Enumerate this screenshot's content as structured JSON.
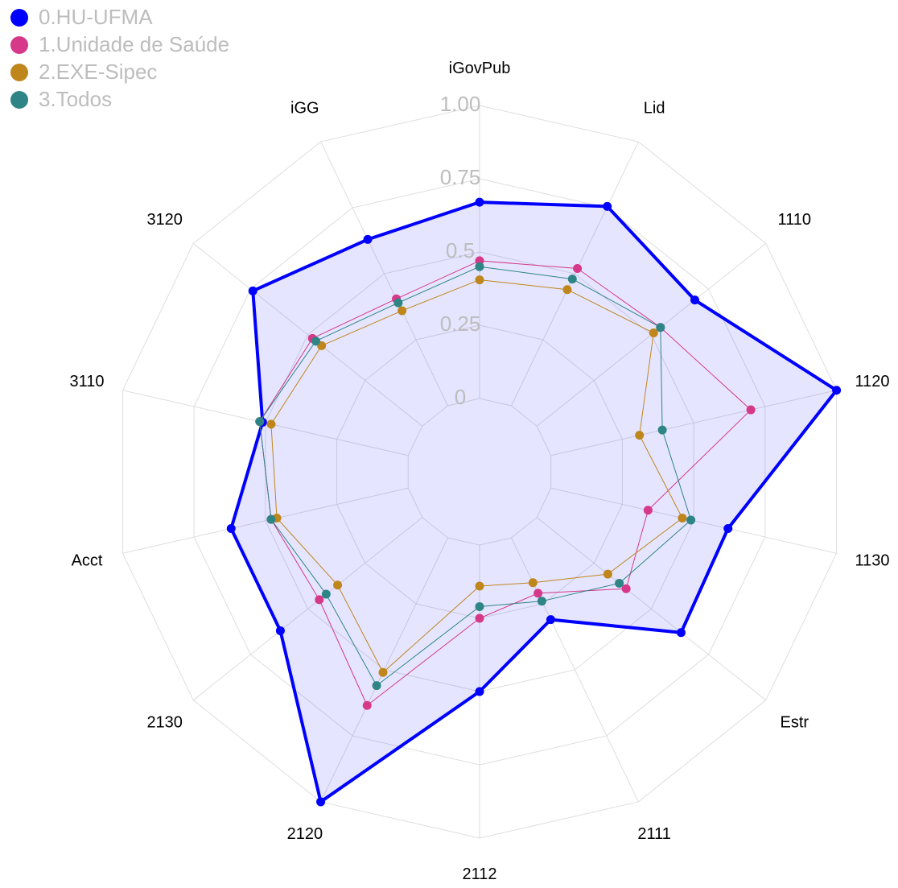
{
  "chart_data": {
    "type": "radar",
    "categories": [
      "iGovPub",
      "Lid",
      "1110",
      "1120",
      "1130",
      "Estr",
      "2111",
      "2112",
      "2120",
      "2130",
      "Acct",
      "3110",
      "3120",
      "iGG"
    ],
    "ylim": [
      -0.25,
      1
    ],
    "yticks": [
      0,
      0.25,
      0.5,
      {
        "value": 0.75,
        "label": "0.75"
      },
      {
        "value": 1,
        "label": "1.00"
      }
    ],
    "grid": true,
    "legend": "top-left",
    "series": [
      {
        "name": "0.HU-UFMA",
        "color": "#0000ff",
        "line_width": 4,
        "fill": true,
        "values": [
          0.67,
          0.755,
          0.69,
          1.0,
          0.62,
          0.63,
          0.31,
          0.5,
          1.0,
          0.62,
          0.62,
          0.51,
          0.74,
          0.63
        ]
      },
      {
        "name": "1.Unidade de Saúde",
        "color": "#d6388a",
        "line_width": 1,
        "values": [
          0.47,
          0.52,
          0.54,
          0.7,
          0.34,
          0.39,
          0.21,
          0.25,
          0.635,
          0.45,
          0.48,
          0.52,
          0.48,
          0.405
        ]
      },
      {
        "name": "2.EXE-Sipec",
        "color": "#bf861c",
        "line_width": 1,
        "values": [
          0.405,
          0.44,
          0.51,
          0.31,
          0.46,
          0.31,
          0.17,
          0.14,
          0.51,
          0.37,
          0.46,
          0.48,
          0.44,
          0.36
        ]
      },
      {
        "name": "3.Todos",
        "color": "#2f8585",
        "line_width": 1,
        "values": [
          0.45,
          0.48,
          0.54,
          0.39,
          0.49,
          0.36,
          0.24,
          0.21,
          0.56,
          0.42,
          0.48,
          0.52,
          0.465,
          0.39
        ]
      }
    ]
  }
}
